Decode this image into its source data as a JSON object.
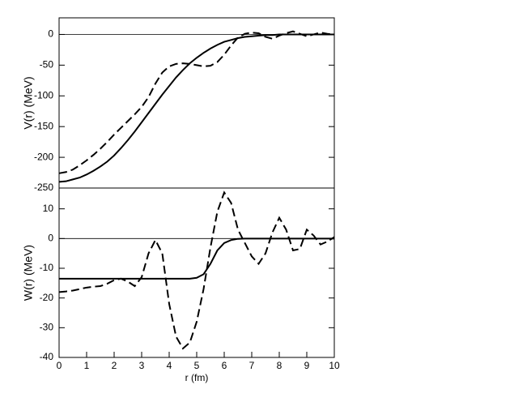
{
  "chart_data": [
    {
      "type": "line",
      "ylabel": "V(r) (MeV)",
      "x": [
        0,
        0.25,
        0.5,
        0.75,
        1,
        1.25,
        1.5,
        1.75,
        2,
        2.25,
        2.5,
        2.75,
        3,
        3.25,
        3.5,
        3.75,
        4,
        4.25,
        4.5,
        4.75,
        5,
        5.25,
        5.5,
        5.75,
        6,
        6.25,
        6.5,
        6.75,
        7,
        7.25,
        7.5,
        7.75,
        8,
        8.25,
        8.5,
        8.75,
        9,
        9.25,
        9.5,
        9.75,
        10
      ],
      "series": [
        {
          "color": "#000000",
          "style": "solid",
          "values": [
            -240,
            -239,
            -236,
            -233,
            -228,
            -222,
            -215,
            -207,
            -197,
            -185,
            -172,
            -158,
            -143,
            -128,
            -113,
            -98,
            -84,
            -70,
            -58,
            -47,
            -38,
            -30,
            -23,
            -17,
            -12,
            -9,
            -6,
            -4,
            -3,
            -2,
            -1,
            -1,
            0,
            0,
            0,
            0,
            0,
            0,
            0,
            0,
            0
          ]
        },
        {
          "color": "#000000",
          "style": "dashed",
          "values": [
            -226,
            -224,
            -220,
            -213,
            -205,
            -196,
            -186,
            -175,
            -163,
            -152,
            -141,
            -130,
            -118,
            -102,
            -80,
            -62,
            -52,
            -48,
            -47,
            -48,
            -50,
            -52,
            -51,
            -45,
            -33,
            -18,
            -5,
            1,
            3,
            2,
            -4,
            -7,
            -2,
            2,
            5,
            1,
            -3,
            0,
            3,
            1,
            0
          ]
        }
      ],
      "xlim": [
        0,
        10
      ],
      "ylim": [
        -250,
        27
      ],
      "yticks": [
        -250,
        -200,
        -150,
        -100,
        -50,
        0
      ],
      "zero_line": true
    },
    {
      "type": "line",
      "ylabel": "W(r) (MeV)",
      "xlabel": "r (fm)",
      "x": [
        0,
        0.25,
        0.5,
        0.75,
        1,
        1.25,
        1.5,
        1.75,
        2,
        2.25,
        2.5,
        2.75,
        3,
        3.25,
        3.5,
        3.75,
        4,
        4.25,
        4.5,
        4.75,
        5,
        5.25,
        5.5,
        5.75,
        6,
        6.25,
        6.5,
        6.75,
        7,
        7.25,
        7.5,
        7.75,
        8,
        8.25,
        8.5,
        8.75,
        9,
        9.25,
        9.5,
        9.75,
        10
      ],
      "series": [
        {
          "color": "#000000",
          "style": "solid",
          "values": [
            -13.5,
            -13.5,
            -13.5,
            -13.5,
            -13.5,
            -13.5,
            -13.5,
            -13.5,
            -13.5,
            -13.5,
            -13.5,
            -13.5,
            -13.5,
            -13.5,
            -13.5,
            -13.5,
            -13.5,
            -13.5,
            -13.5,
            -13.5,
            -13.2,
            -12,
            -8.5,
            -4,
            -1.5,
            -0.5,
            -0.1,
            0,
            0,
            0,
            0,
            0,
            0,
            0,
            0,
            0,
            0,
            0,
            0,
            0,
            0
          ]
        },
        {
          "color": "#000000",
          "style": "dashed",
          "values": [
            -18,
            -17.8,
            -17.5,
            -17,
            -16.5,
            -16.2,
            -16,
            -15.2,
            -14,
            -13.5,
            -14.5,
            -16,
            -13,
            -5,
            -0.5,
            -5,
            -22,
            -33,
            -37,
            -35,
            -28,
            -17,
            -3,
            9,
            15.5,
            12,
            3,
            -1.5,
            -6,
            -8.5,
            -5,
            2,
            7,
            3,
            -4,
            -3.5,
            3,
            1,
            -2,
            -1,
            0.5
          ]
        }
      ],
      "xlim": [
        0,
        10
      ],
      "xticks": [
        0,
        1,
        2,
        3,
        4,
        5,
        6,
        7,
        8,
        9,
        10
      ],
      "ylim": [
        -40,
        17
      ],
      "yticks": [
        -40,
        -30,
        -20,
        -10,
        0,
        10
      ],
      "zero_line": true
    }
  ]
}
